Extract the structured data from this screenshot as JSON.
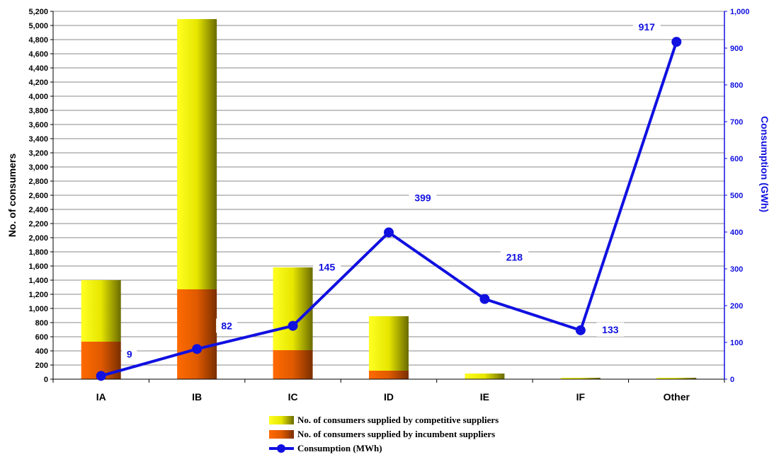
{
  "chart_data": {
    "type": "bar",
    "categories": [
      "IA",
      "IB",
      "IC",
      "ID",
      "IE",
      "IF",
      "Other"
    ],
    "series": [
      {
        "name": "No. of consumers supplied by competitive suppliers",
        "kind": "stacked-bar",
        "axis": "left",
        "values": [
          870,
          3820,
          1170,
          770,
          80,
          20,
          20
        ]
      },
      {
        "name": "No. of consumers supplied by incumbent suppliers",
        "kind": "stacked-bar",
        "axis": "left",
        "values": [
          530,
          1270,
          410,
          120,
          0,
          0,
          0
        ]
      },
      {
        "name": "Consumption (MWh)",
        "kind": "line",
        "axis": "right",
        "values": [
          9,
          82,
          145,
          399,
          218,
          133,
          917
        ]
      }
    ],
    "ylabel": "No. of consumers",
    "y2label": "Consumption (GWh)",
    "ylim": [
      0,
      5200
    ],
    "yticks": [
      "0",
      "200",
      "400",
      "600",
      "800",
      "1,000",
      "1,200",
      "1,400",
      "1,600",
      "1,800",
      "2,000",
      "2,200",
      "2,400",
      "2,600",
      "2,800",
      "3,000",
      "3,200",
      "3,400",
      "3,600",
      "3,800",
      "4,000",
      "4,200",
      "4,400",
      "4,600",
      "4,800",
      "5,000",
      "5,200"
    ],
    "y2lim": [
      0,
      1000
    ],
    "y2ticks": [
      "0",
      "100",
      "200",
      "300",
      "400",
      "500",
      "600",
      "700",
      "800",
      "900",
      "1,000"
    ],
    "data_labels": [
      "9",
      "82",
      "145",
      "399",
      "218",
      "133",
      "917"
    ],
    "grid": true,
    "legend_position": "bottom",
    "colors": {
      "competitive": "#f2f200",
      "incumbent": "#ee6600",
      "line": "#1010e0",
      "grid": "#888888"
    }
  }
}
